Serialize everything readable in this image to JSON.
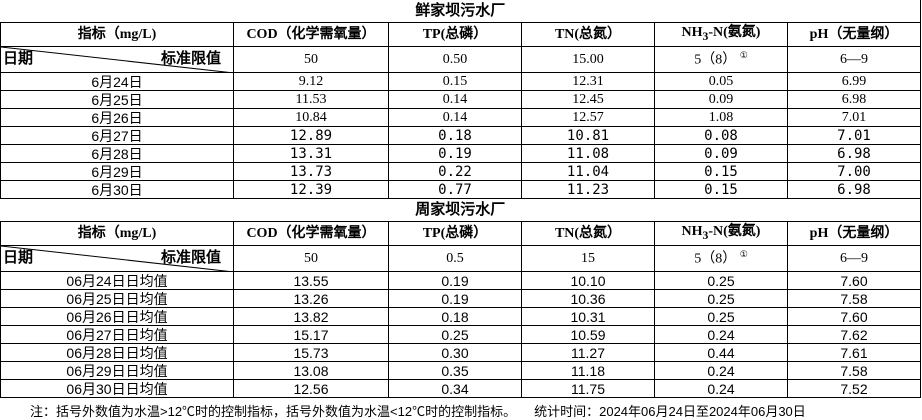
{
  "columns": {
    "indicator": "指标（mg/L)",
    "cod": "COD（化学需氧量）",
    "tp": "TP(总磷）",
    "tn": "TN(总氮）",
    "nh3_pre": "NH",
    "nh3_sub": "3",
    "nh3_post": "-N(氨氮)",
    "ph": "pH（无量纲）",
    "date": "日期",
    "standard": "标准限值"
  },
  "plant1": {
    "name": "鲜家坝污水厂",
    "standards": [
      "50",
      "0.50",
      "15.00",
      "5（8）",
      "6—9"
    ],
    "footnote_mark": "①",
    "rows": [
      [
        "6月24日",
        "9.12",
        "0.15",
        "12.31",
        "0.05",
        "6.99"
      ],
      [
        "6月25日",
        "11.53",
        "0.14",
        "12.45",
        "0.09",
        "6.98"
      ],
      [
        "6月26日",
        "10.84",
        "0.14",
        "12.57",
        "1.08",
        "7.01"
      ],
      [
        "6月27日",
        "12.89",
        "0.18",
        "10.81",
        "0.08",
        "7.01"
      ],
      [
        "6月28日",
        "13.31",
        "0.19",
        "11.08",
        "0.09",
        "6.98"
      ],
      [
        "6月29日",
        "13.73",
        "0.22",
        "11.04",
        "0.15",
        "7.00"
      ],
      [
        "6月30日",
        "12.39",
        "0.77",
        "11.23",
        "0.15",
        "6.98"
      ]
    ]
  },
  "plant2": {
    "name": "周家坝污水厂",
    "standards": [
      "50",
      "0.5",
      "15",
      "5（8）",
      "6—9"
    ],
    "footnote_mark": "①",
    "rows": [
      [
        "06月24日日均值",
        "13.55",
        "0.19",
        "10.10",
        "0.25",
        "7.60"
      ],
      [
        "06月25日日均值",
        "13.26",
        "0.19",
        "10.36",
        "0.25",
        "7.58"
      ],
      [
        "06月26日日均值",
        "13.82",
        "0.18",
        "10.31",
        "0.25",
        "7.60"
      ],
      [
        "06月27日日均值",
        "15.17",
        "0.25",
        "10.59",
        "0.24",
        "7.62"
      ],
      [
        "06月28日日均值",
        "15.73",
        "0.30",
        "11.27",
        "0.44",
        "7.61"
      ],
      [
        "06月29日日均值",
        "13.08",
        "0.35",
        "11.18",
        "0.24",
        "7.58"
      ],
      [
        "06月30日日均值",
        "12.56",
        "0.34",
        "11.75",
        "0.24",
        "7.52"
      ]
    ]
  },
  "note": "注：括号外数值为水温>12℃时的控制指标，括号外数值为水温<12℃时的控制指标。",
  "stat_time": "统计时间：2024年06月24日至2024年06月30日"
}
